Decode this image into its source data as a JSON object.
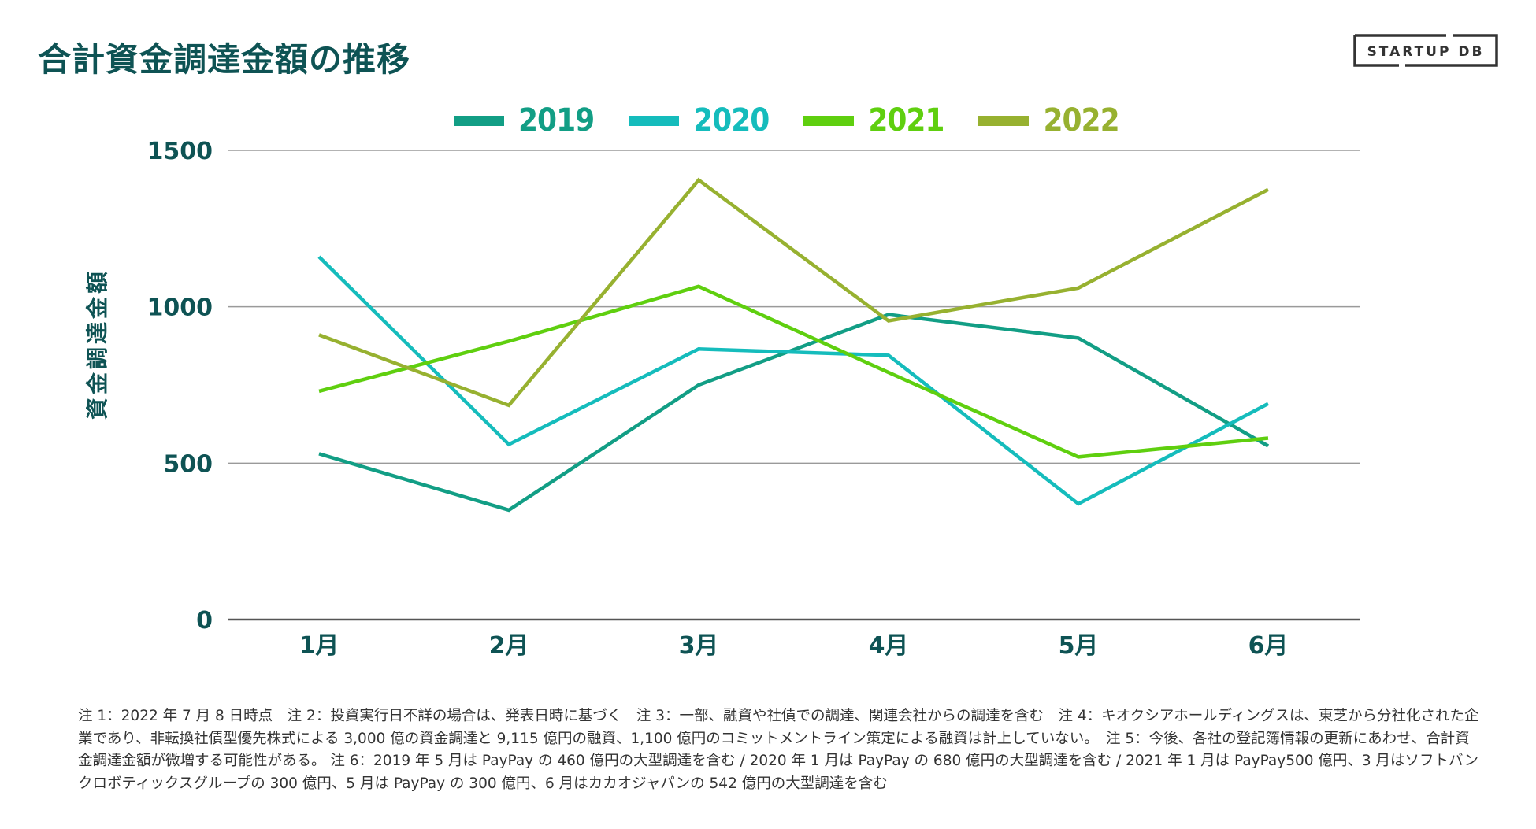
{
  "page": {
    "title": "合計資金調達金額の推移",
    "logo_text": "STARTUP DB",
    "notes": "注 1：2022 年 7 月 8 日時点　注 2：投資実行日不詳の場合は、発表日時に基づく　注 3：一部、融資や社債での調達、関連会社からの調達を含む　注 4：キオクシアホールディングスは、東芝から分社化された企業であり、非転換社債型優先株式による 3,000 億の資金調達と 9,115 億円の融資、1,100 億円のコミットメントライン策定による融資は計上していない。　注 5：今後、各社の登記簿情報の更新にあわせ、合計資金調達金額が微増する可能性がある。 注 6：2019 年 5 月は PayPay の 460 億円の大型調達を含む / 2020 年 1 月は PayPay の 680 億円の大型調達を含む / 2021 年 1 月は PayPay500 億円、3 月はソフトバンクロボティックスグループの 300 億円、5 月は PayPay の 300 億円、6 月はカカオジャパンの 542 億円の大型調達を含む"
  },
  "chart_data": {
    "type": "line",
    "title": "合計資金調達金額の推移",
    "xlabel": "",
    "ylabel": "資金調達金額",
    "categories": [
      "1月",
      "2月",
      "3月",
      "4月",
      "5月",
      "6月"
    ],
    "ylim": [
      0,
      1500
    ],
    "yticks": [
      0,
      500,
      1000,
      1500
    ],
    "ytick_labels": [
      "0",
      "500",
      "1000",
      "1500"
    ],
    "grid": true,
    "legend_position": "top-center",
    "series": [
      {
        "name": "2019",
        "color": "#129e85",
        "values": [
          530,
          350,
          750,
          975,
          900,
          555
        ]
      },
      {
        "name": "2020",
        "color": "#15bcbc",
        "values": [
          1160,
          560,
          865,
          845,
          370,
          690
        ]
      },
      {
        "name": "2021",
        "color": "#5fcf0f",
        "values": [
          730,
          890,
          1065,
          790,
          520,
          580
        ]
      },
      {
        "name": "2022",
        "color": "#97b130",
        "values": [
          910,
          685,
          1405,
          955,
          1060,
          1375
        ]
      }
    ]
  }
}
